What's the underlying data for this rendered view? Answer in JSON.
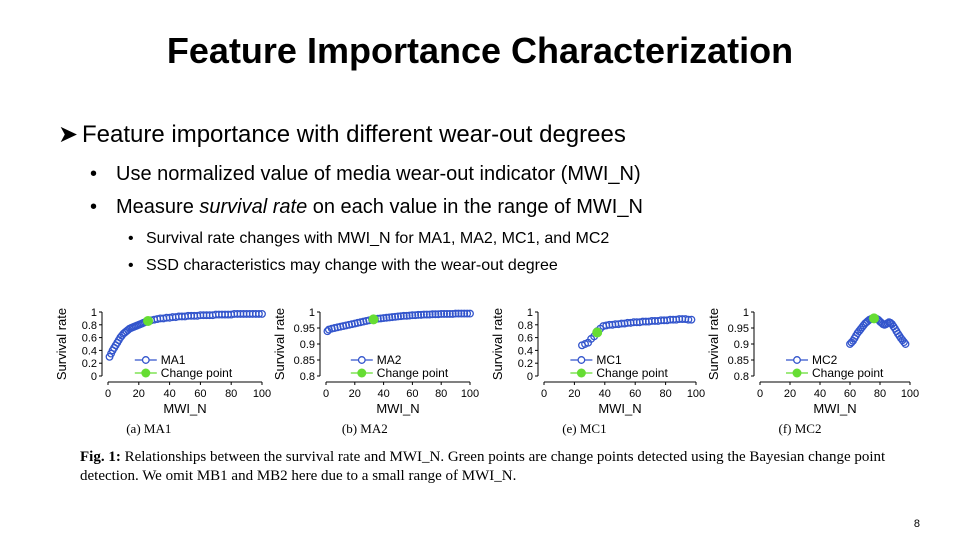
{
  "slide": {
    "title": "Feature Importance Characterization",
    "bullet1": "Feature importance with different wear-out degrees",
    "bullet1_1": "Use normalized value of media wear-out indicator (MWI_N)",
    "bullet1_2_pre": "Measure ",
    "bullet1_2_em": "survival rate",
    "bullet1_2_post": " on each value in the range of MWI_N",
    "bullet1_2_1": "Survival rate changes with MWI_N for MA1, MA2, MC1, and MC2",
    "bullet1_2_2": "SSD characteristics may change with the wear-out degree",
    "caption_label": "Fig. 1:",
    "caption_text": " Relationships between the survival rate and MWI_N. Green points are change points detected using the Bayesian change point detection. We omit MB1 and MB2 here due to a small range of MWI_N.",
    "page_number": "8"
  },
  "colors": {
    "series": "#3355cc",
    "change_point": "#66dd33"
  },
  "chart_data": [
    {
      "type": "scatter",
      "subcaption": "(a) MA1",
      "ylabel": "Survival rate",
      "xlabel": "MWI_N",
      "yticks": [
        "1",
        "0.8",
        "0.6",
        "0.4",
        "0.2",
        "0"
      ],
      "ylim": [
        0,
        1
      ],
      "xticks": [
        "0",
        "20",
        "40",
        "60",
        "80",
        "100"
      ],
      "xlim": [
        0,
        100
      ],
      "legend": [
        "MA1",
        "Change point"
      ],
      "x": [
        1,
        2,
        3,
        4,
        5,
        6,
        7,
        8,
        9,
        10,
        11,
        12,
        13,
        14,
        15,
        16,
        17,
        18,
        19,
        20,
        21,
        22,
        23,
        24,
        25,
        26,
        28,
        30,
        32,
        34,
        36,
        38,
        40,
        42,
        44,
        46,
        48,
        50,
        52,
        54,
        56,
        58,
        60,
        62,
        64,
        66,
        68,
        70,
        72,
        74,
        76,
        78,
        80,
        82,
        84,
        86,
        88,
        90,
        92,
        94,
        96,
        98,
        100
      ],
      "y": [
        0.3,
        0.35,
        0.4,
        0.44,
        0.48,
        0.52,
        0.56,
        0.6,
        0.63,
        0.66,
        0.68,
        0.7,
        0.72,
        0.74,
        0.75,
        0.76,
        0.77,
        0.78,
        0.79,
        0.8,
        0.81,
        0.82,
        0.83,
        0.84,
        0.85,
        0.86,
        0.87,
        0.88,
        0.89,
        0.9,
        0.9,
        0.91,
        0.91,
        0.92,
        0.92,
        0.93,
        0.93,
        0.93,
        0.94,
        0.94,
        0.94,
        0.94,
        0.95,
        0.95,
        0.95,
        0.95,
        0.95,
        0.96,
        0.96,
        0.96,
        0.96,
        0.96,
        0.96,
        0.97,
        0.97,
        0.97,
        0.97,
        0.97,
        0.97,
        0.97,
        0.97,
        0.97,
        0.97
      ],
      "change_point": [
        26,
        0.86
      ]
    },
    {
      "type": "scatter",
      "subcaption": "(b) MA2",
      "ylabel": "Survival rate",
      "xlabel": "MWI_N",
      "yticks": [
        "1",
        "0.95",
        "0.9",
        "0.85",
        "0.8"
      ],
      "ylim": [
        0.8,
        1
      ],
      "xticks": [
        "0",
        "20",
        "40",
        "60",
        "80",
        "100"
      ],
      "xlim": [
        0,
        100
      ],
      "legend": [
        "MA2",
        "Change point"
      ],
      "x": [
        1,
        2,
        4,
        6,
        8,
        10,
        12,
        14,
        16,
        18,
        20,
        22,
        24,
        26,
        28,
        30,
        32,
        34,
        36,
        38,
        40,
        42,
        44,
        46,
        48,
        50,
        52,
        54,
        56,
        58,
        60,
        62,
        64,
        66,
        68,
        70,
        72,
        74,
        76,
        78,
        80,
        82,
        84,
        86,
        88,
        90,
        92,
        94,
        96,
        98,
        100
      ],
      "y": [
        0.94,
        0.945,
        0.948,
        0.95,
        0.952,
        0.954,
        0.956,
        0.958,
        0.96,
        0.962,
        0.964,
        0.966,
        0.968,
        0.97,
        0.972,
        0.974,
        0.976,
        0.978,
        0.979,
        0.98,
        0.981,
        0.982,
        0.983,
        0.984,
        0.985,
        0.986,
        0.987,
        0.988,
        0.988,
        0.989,
        0.99,
        0.99,
        0.991,
        0.991,
        0.992,
        0.992,
        0.992,
        0.993,
        0.993,
        0.993,
        0.994,
        0.994,
        0.994,
        0.994,
        0.994,
        0.995,
        0.995,
        0.995,
        0.995,
        0.995,
        0.995
      ],
      "change_point": [
        33,
        0.977
      ]
    },
    {
      "type": "scatter",
      "subcaption": "(e) MC1",
      "ylabel": "Survival rate",
      "xlabel": "MWI_N",
      "yticks": [
        "1",
        "0.8",
        "0.6",
        "0.4",
        "0.2",
        "0"
      ],
      "ylim": [
        0,
        1
      ],
      "xticks": [
        "0",
        "20",
        "40",
        "60",
        "80",
        "100"
      ],
      "xlim": [
        0,
        100
      ],
      "legend": [
        "MC1",
        "Change point"
      ],
      "x": [
        25,
        27,
        29,
        31,
        33,
        35,
        37,
        39,
        41,
        43,
        45,
        47,
        49,
        51,
        53,
        55,
        57,
        59,
        61,
        63,
        65,
        67,
        69,
        71,
        73,
        75,
        77,
        79,
        81,
        83,
        85,
        87,
        89,
        91,
        93,
        95,
        97
      ],
      "y": [
        0.48,
        0.5,
        0.52,
        0.58,
        0.62,
        0.7,
        0.74,
        0.78,
        0.79,
        0.8,
        0.8,
        0.81,
        0.81,
        0.82,
        0.82,
        0.83,
        0.83,
        0.84,
        0.84,
        0.84,
        0.85,
        0.85,
        0.85,
        0.86,
        0.86,
        0.86,
        0.87,
        0.87,
        0.87,
        0.88,
        0.88,
        0.88,
        0.89,
        0.89,
        0.89,
        0.88,
        0.88
      ],
      "change_point": [
        35,
        0.68
      ]
    },
    {
      "type": "scatter",
      "subcaption": "(f) MC2",
      "ylabel": "Survival rate",
      "xlabel": "MWI_N",
      "yticks": [
        "1",
        "0.95",
        "0.9",
        "0.85",
        "0.8"
      ],
      "ylim": [
        0.8,
        1
      ],
      "xticks": [
        "0",
        "20",
        "40",
        "60",
        "80",
        "100"
      ],
      "xlim": [
        0,
        100
      ],
      "legend": [
        "MC2",
        "Change point"
      ],
      "x": [
        60,
        61,
        62,
        63,
        64,
        65,
        66,
        67,
        68,
        69,
        70,
        71,
        72,
        73,
        74,
        75,
        76,
        77,
        78,
        79,
        80,
        81,
        82,
        83,
        84,
        85,
        86,
        87,
        88,
        89,
        90,
        91,
        92,
        93,
        94,
        95,
        96,
        97
      ],
      "y": [
        0.9,
        0.905,
        0.91,
        0.918,
        0.926,
        0.934,
        0.94,
        0.946,
        0.952,
        0.958,
        0.964,
        0.968,
        0.972,
        0.976,
        0.978,
        0.98,
        0.98,
        0.98,
        0.978,
        0.975,
        0.97,
        0.966,
        0.962,
        0.96,
        0.962,
        0.965,
        0.968,
        0.966,
        0.962,
        0.955,
        0.948,
        0.94,
        0.932,
        0.925,
        0.918,
        0.912,
        0.906,
        0.9
      ],
      "change_point": [
        76,
        0.98
      ]
    }
  ]
}
